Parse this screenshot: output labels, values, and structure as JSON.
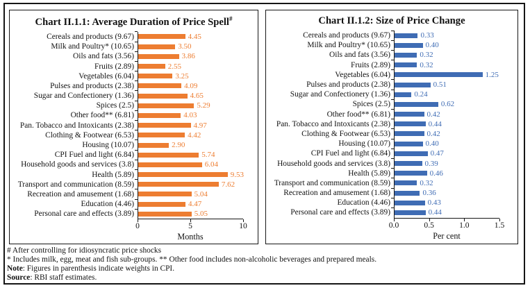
{
  "chart_data": [
    {
      "type": "bar",
      "orientation": "horizontal",
      "title": "Chart II.1.1: Average Duration of Price Spell",
      "title_superscript": "#",
      "categories": [
        "Cereals and products (9.67)",
        "Milk and Poultry* (10.65)",
        "Oils and fats (3.56)",
        "Fruits (2.89)",
        "Vegetables (6.04)",
        "Pulses and products (2.38)",
        "Sugar and Confectionery (1.36)",
        "Spices (2.5)",
        "Other food** (6.81)",
        "Pan. Tobacco and Intoxicants (2.38)",
        "Clothing & Footwear (6.53)",
        "Housing (10.07)",
        "CPI Fuel and light (6.84)",
        "Household goods and services (3.8)",
        "Health (5.89)",
        "Transport and communication (8.59)",
        "Recreation and amusement (1.68)",
        "Education (4.46)",
        "Personal care and effects (3.89)"
      ],
      "values": [
        4.45,
        3.5,
        3.86,
        2.55,
        3.25,
        4.09,
        4.65,
        5.29,
        4.03,
        4.97,
        4.42,
        2.9,
        5.74,
        6.04,
        9.53,
        7.62,
        5.04,
        4.47,
        5.05
      ],
      "value_labels": [
        "4.45",
        "3.50",
        "3.86",
        "2.55",
        "3.25",
        "4.09",
        "4.65",
        "5.29",
        "4.03",
        "4.97",
        "4.42",
        "2.90",
        "5.74",
        "6.04",
        "9.53",
        "7.62",
        "5.04",
        "4.47",
        "5.05"
      ],
      "xlabel": "Months",
      "xlim": [
        0,
        10
      ],
      "xticks": [
        0,
        5,
        10
      ],
      "xtick_labels": [
        "0",
        "5",
        "10"
      ],
      "bar_color": "#ED7D31",
      "grid": false,
      "legend": false
    },
    {
      "type": "bar",
      "orientation": "horizontal",
      "title": "Chart II.1.2: Size of Price Change",
      "categories": [
        "Cereals and products (9.67)",
        "Milk and Poultry* (10.65)",
        "Oils and fats (3.56)",
        "Fruits (2.89)",
        "Vegetables (6.04)",
        "Pulses and products (2.38)",
        "Sugar and Confectionery (1.36)",
        "Spices (2.5)",
        "Other food** (6.81)",
        "Pan. Tobacco and Intoxicants (2.38)",
        "Clothing & Footwear (6.53)",
        "Housing (10.07)",
        "CPI Fuel and light (6.84)",
        "Household goods and services (3.8)",
        "Health (5.89)",
        "Transport and communication (8.59)",
        "Recreation and amusement (1.68)",
        "Education (4.46)",
        "Personal care and effects (3.89)"
      ],
      "values": [
        0.33,
        0.4,
        0.32,
        0.32,
        1.25,
        0.51,
        0.24,
        0.62,
        0.42,
        0.44,
        0.42,
        0.4,
        0.47,
        0.39,
        0.46,
        0.32,
        0.36,
        0.43,
        0.44
      ],
      "value_labels": [
        "0.33",
        "0.40",
        "0.32",
        "0.32",
        "1.25",
        "0.51",
        "0.24",
        "0.62",
        "0.42",
        "0.44",
        "0.42",
        "0.40",
        "0.47",
        "0.39",
        "0.46",
        "0.32",
        "0.36",
        "0.43",
        "0.44"
      ],
      "xlabel": "Per cent",
      "xlim": [
        0,
        1.5
      ],
      "xticks": [
        0,
        0.5,
        1.0,
        1.5
      ],
      "xtick_labels": [
        "0.0",
        "0.5",
        "1.0",
        "1.5"
      ],
      "bar_color": "#3F6CB4",
      "grid": false,
      "legend": false
    }
  ],
  "footnotes": {
    "line1": "# After controlling for idiosyncratic price shocks",
    "line2": "* Includes milk, egg, meat and fish sub-groups. ** Other food includes non-alcoholic beverages and prepared meals.",
    "note_label": "Note",
    "note_text": ": Figures in parenthesis indicate weights in CPI.",
    "source_label": "Source",
    "source_text": ": RBI staff estimates."
  }
}
